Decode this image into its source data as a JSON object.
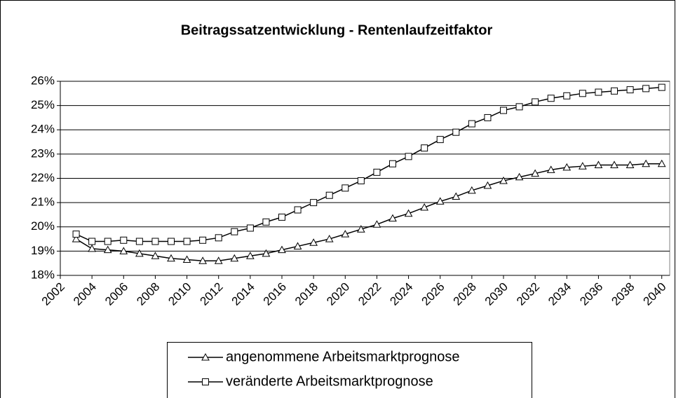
{
  "chart_data": {
    "type": "line",
    "title": "Beitragssatzentwicklung - Rentenlaufzeitfaktor",
    "x": [
      2003,
      2004,
      2005,
      2006,
      2007,
      2008,
      2009,
      2010,
      2011,
      2012,
      2013,
      2014,
      2015,
      2016,
      2017,
      2018,
      2019,
      2020,
      2021,
      2022,
      2023,
      2024,
      2025,
      2026,
      2027,
      2028,
      2029,
      2030,
      2031,
      2032,
      2033,
      2034,
      2035,
      2036,
      2037,
      2038,
      2039,
      2040
    ],
    "series": [
      {
        "name": "angenommene Arbeitsmarktprognose",
        "color": "#000000",
        "marker": "triangle",
        "values": [
          19.5,
          19.1,
          19.05,
          19.0,
          18.9,
          18.8,
          18.7,
          18.65,
          18.6,
          18.6,
          18.7,
          18.8,
          18.9,
          19.05,
          19.2,
          19.35,
          19.5,
          19.7,
          19.9,
          20.1,
          20.35,
          20.55,
          20.8,
          21.05,
          21.25,
          21.5,
          21.7,
          21.9,
          22.05,
          22.2,
          22.35,
          22.45,
          22.5,
          22.55,
          22.55,
          22.55,
          22.6,
          22.6
        ]
      },
      {
        "name": "veränderte Arbeitsmarktprognose",
        "color": "#000000",
        "marker": "square",
        "values": [
          19.7,
          19.4,
          19.4,
          19.45,
          19.4,
          19.4,
          19.4,
          19.4,
          19.45,
          19.55,
          19.8,
          19.95,
          20.2,
          20.4,
          20.7,
          21.0,
          21.3,
          21.6,
          21.9,
          22.25,
          22.6,
          22.9,
          23.25,
          23.6,
          23.9,
          24.25,
          24.5,
          24.8,
          24.95,
          25.15,
          25.3,
          25.4,
          25.5,
          25.55,
          25.6,
          25.65,
          25.7,
          25.75
        ]
      }
    ],
    "xlim": [
      2002,
      2040.5
    ],
    "xticks": [
      2002,
      2004,
      2006,
      2008,
      2010,
      2012,
      2014,
      2016,
      2018,
      2020,
      2022,
      2024,
      2026,
      2028,
      2030,
      2032,
      2034,
      2036,
      2038,
      2040
    ],
    "ylim": [
      18,
      26
    ],
    "yticks": [
      {
        "value": 18,
        "label": "18%"
      },
      {
        "value": 19,
        "label": "19%"
      },
      {
        "value": 20,
        "label": "20%"
      },
      {
        "value": 21,
        "label": "21%"
      },
      {
        "value": 22,
        "label": "22%"
      },
      {
        "value": 23,
        "label": "23%"
      },
      {
        "value": 24,
        "label": "24%"
      },
      {
        "value": 25,
        "label": "25%"
      },
      {
        "value": 26,
        "label": "26%"
      }
    ],
    "grid": true,
    "legend": "bottom"
  }
}
